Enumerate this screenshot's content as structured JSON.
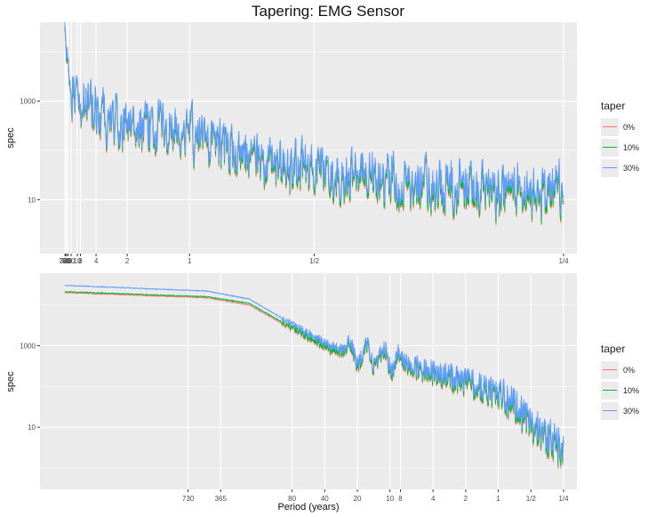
{
  "title": "Tapering: EMG Sensor",
  "colors": {
    "panel_bg": "#ebebeb",
    "grid": "#ffffff",
    "taper_0": "#f8766d",
    "taper_10": "#00ba38",
    "taper_30": "#619cff"
  },
  "legend": {
    "title": "taper",
    "items": [
      {
        "label": "0%",
        "color": "#f8766d"
      },
      {
        "label": "10%",
        "color": "#00ba38"
      },
      {
        "label": "30%",
        "color": "#619cff"
      }
    ]
  },
  "chart_data": [
    {
      "type": "line",
      "panel": "top",
      "ylabel": "spec",
      "y_scale": "log10",
      "ylim": [
        0.8,
        40000
      ],
      "y_ticks": [
        {
          "value": 10,
          "label": "10"
        },
        {
          "value": 1000,
          "label": "1000"
        }
      ],
      "x_tick_labels": [
        {
          "label": "730",
          "frequency": 0.0014
        },
        {
          "label": "365",
          "frequency": 0.0027
        },
        {
          "label": "80",
          "frequency": 0.0125
        },
        {
          "label": "40",
          "frequency": 0.025
        },
        {
          "label": "20",
          "frequency": 0.05
        },
        {
          "label": "10",
          "frequency": 0.1
        },
        {
          "label": "8",
          "frequency": 0.125
        },
        {
          "label": "4",
          "frequency": 0.25
        },
        {
          "label": "2",
          "frequency": 0.5
        },
        {
          "label": "1",
          "frequency": 1
        },
        {
          "label": "1/2",
          "frequency": 2
        },
        {
          "label": "1/4",
          "frequency": 4
        }
      ],
      "x_range_frequency": [
        0.0014,
        4
      ],
      "series": [
        {
          "name": "0%",
          "points": [
            [
              0.01,
              20000
            ],
            [
              0.2,
              500
            ],
            [
              1,
              200
            ],
            [
              2,
              30
            ],
            [
              4,
              10
            ]
          ]
        },
        {
          "name": "10%",
          "points": [
            [
              0.01,
              22000
            ],
            [
              0.2,
              550
            ],
            [
              1,
              220
            ],
            [
              2,
              33
            ],
            [
              4,
              11
            ]
          ]
        },
        {
          "name": "30%",
          "points": [
            [
              0.01,
              25000
            ],
            [
              0.2,
              600
            ],
            [
              1,
              250
            ],
            [
              2,
              40
            ],
            [
              4,
              14
            ]
          ]
        }
      ]
    },
    {
      "type": "line",
      "panel": "bottom",
      "ylabel": "spec",
      "xlabel": "Period (years)",
      "x_scale": "log10",
      "y_scale": "log10",
      "ylim": [
        0.3,
        60000
      ],
      "y_ticks": [
        {
          "value": 10,
          "label": "10"
        },
        {
          "value": 1000,
          "label": "1000"
        }
      ],
      "x_ticks": [
        {
          "label": "730",
          "frequency": 0.00137
        },
        {
          "label": "365",
          "frequency": 0.00274
        },
        {
          "label": "80",
          "frequency": 0.0125
        },
        {
          "label": "40",
          "frequency": 0.025
        },
        {
          "label": "20",
          "frequency": 0.05
        },
        {
          "label": "10",
          "frequency": 0.1
        },
        {
          "label": "8",
          "frequency": 0.125
        },
        {
          "label": "4",
          "frequency": 0.25
        },
        {
          "label": "2",
          "frequency": 0.5
        },
        {
          "label": "1",
          "frequency": 1
        },
        {
          "label": "1/2",
          "frequency": 2
        },
        {
          "label": "1/4",
          "frequency": 4
        }
      ],
      "series": [
        {
          "name": "0%",
          "points": [
            [
              0.0001,
              20000
            ],
            [
              0.002,
              15000
            ],
            [
              0.005,
              10000
            ],
            [
              0.03,
              700
            ],
            [
              0.1,
              400
            ],
            [
              1,
              60
            ],
            [
              4,
              2
            ]
          ]
        },
        {
          "name": "10%",
          "points": [
            [
              0.0001,
              21000
            ],
            [
              0.002,
              16000
            ],
            [
              0.005,
              11000
            ],
            [
              0.03,
              750
            ],
            [
              0.1,
              430
            ],
            [
              1,
              65
            ],
            [
              4,
              2.3
            ]
          ]
        },
        {
          "name": "30%",
          "points": [
            [
              0.0001,
              30000
            ],
            [
              0.002,
              22000
            ],
            [
              0.005,
              14000
            ],
            [
              0.03,
              900
            ],
            [
              0.1,
              500
            ],
            [
              1,
              80
            ],
            [
              4,
              3
            ]
          ]
        }
      ]
    }
  ]
}
